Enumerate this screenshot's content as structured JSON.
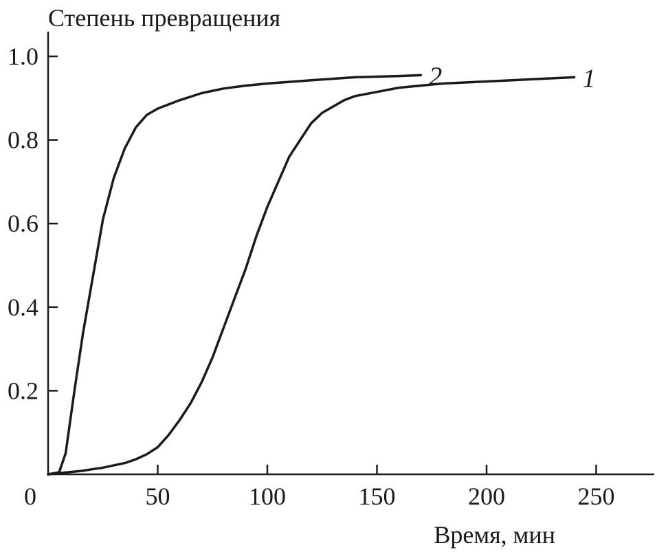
{
  "chart_data": {
    "type": "line",
    "title": "",
    "ylabel": "Степень превращения",
    "xlabel": "Время, мин",
    "xlim": [
      0,
      275
    ],
    "ylim": [
      0,
      1.0
    ],
    "x_ticks": [
      0,
      50,
      100,
      150,
      200,
      250
    ],
    "x_tick_labels": [
      "0",
      "50",
      "100",
      "150",
      "200",
      "250"
    ],
    "y_ticks": [
      0.2,
      0.4,
      0.6,
      0.8,
      1.0
    ],
    "y_tick_labels": [
      "0.2",
      "0.4",
      "0.6",
      "0.8",
      "1.0"
    ],
    "grid": false,
    "line_color": "#1a1a1a",
    "series": [
      {
        "name": "1",
        "x": [
          0,
          5,
          15,
          25,
          35,
          40,
          45,
          50,
          55,
          60,
          65,
          70,
          75,
          80,
          85,
          90,
          95,
          100,
          105,
          110,
          115,
          120,
          125,
          130,
          135,
          140,
          150,
          160,
          180,
          200,
          220,
          240
        ],
        "y": [
          0,
          0.003,
          0.008,
          0.016,
          0.027,
          0.036,
          0.048,
          0.065,
          0.094,
          0.13,
          0.17,
          0.22,
          0.28,
          0.35,
          0.42,
          0.49,
          0.57,
          0.64,
          0.7,
          0.76,
          0.8,
          0.84,
          0.865,
          0.88,
          0.895,
          0.905,
          0.915,
          0.925,
          0.935,
          0.94,
          0.945,
          0.95
        ]
      },
      {
        "name": "2",
        "x": [
          0,
          5,
          8,
          12,
          16,
          20,
          25,
          30,
          35,
          40,
          45,
          50,
          55,
          60,
          70,
          80,
          90,
          100,
          120,
          140,
          160,
          170
        ],
        "y": [
          0,
          0.005,
          0.05,
          0.2,
          0.34,
          0.46,
          0.61,
          0.71,
          0.78,
          0.83,
          0.86,
          0.875,
          0.885,
          0.895,
          0.912,
          0.923,
          0.93,
          0.935,
          0.943,
          0.95,
          0.953,
          0.955
        ]
      }
    ]
  }
}
